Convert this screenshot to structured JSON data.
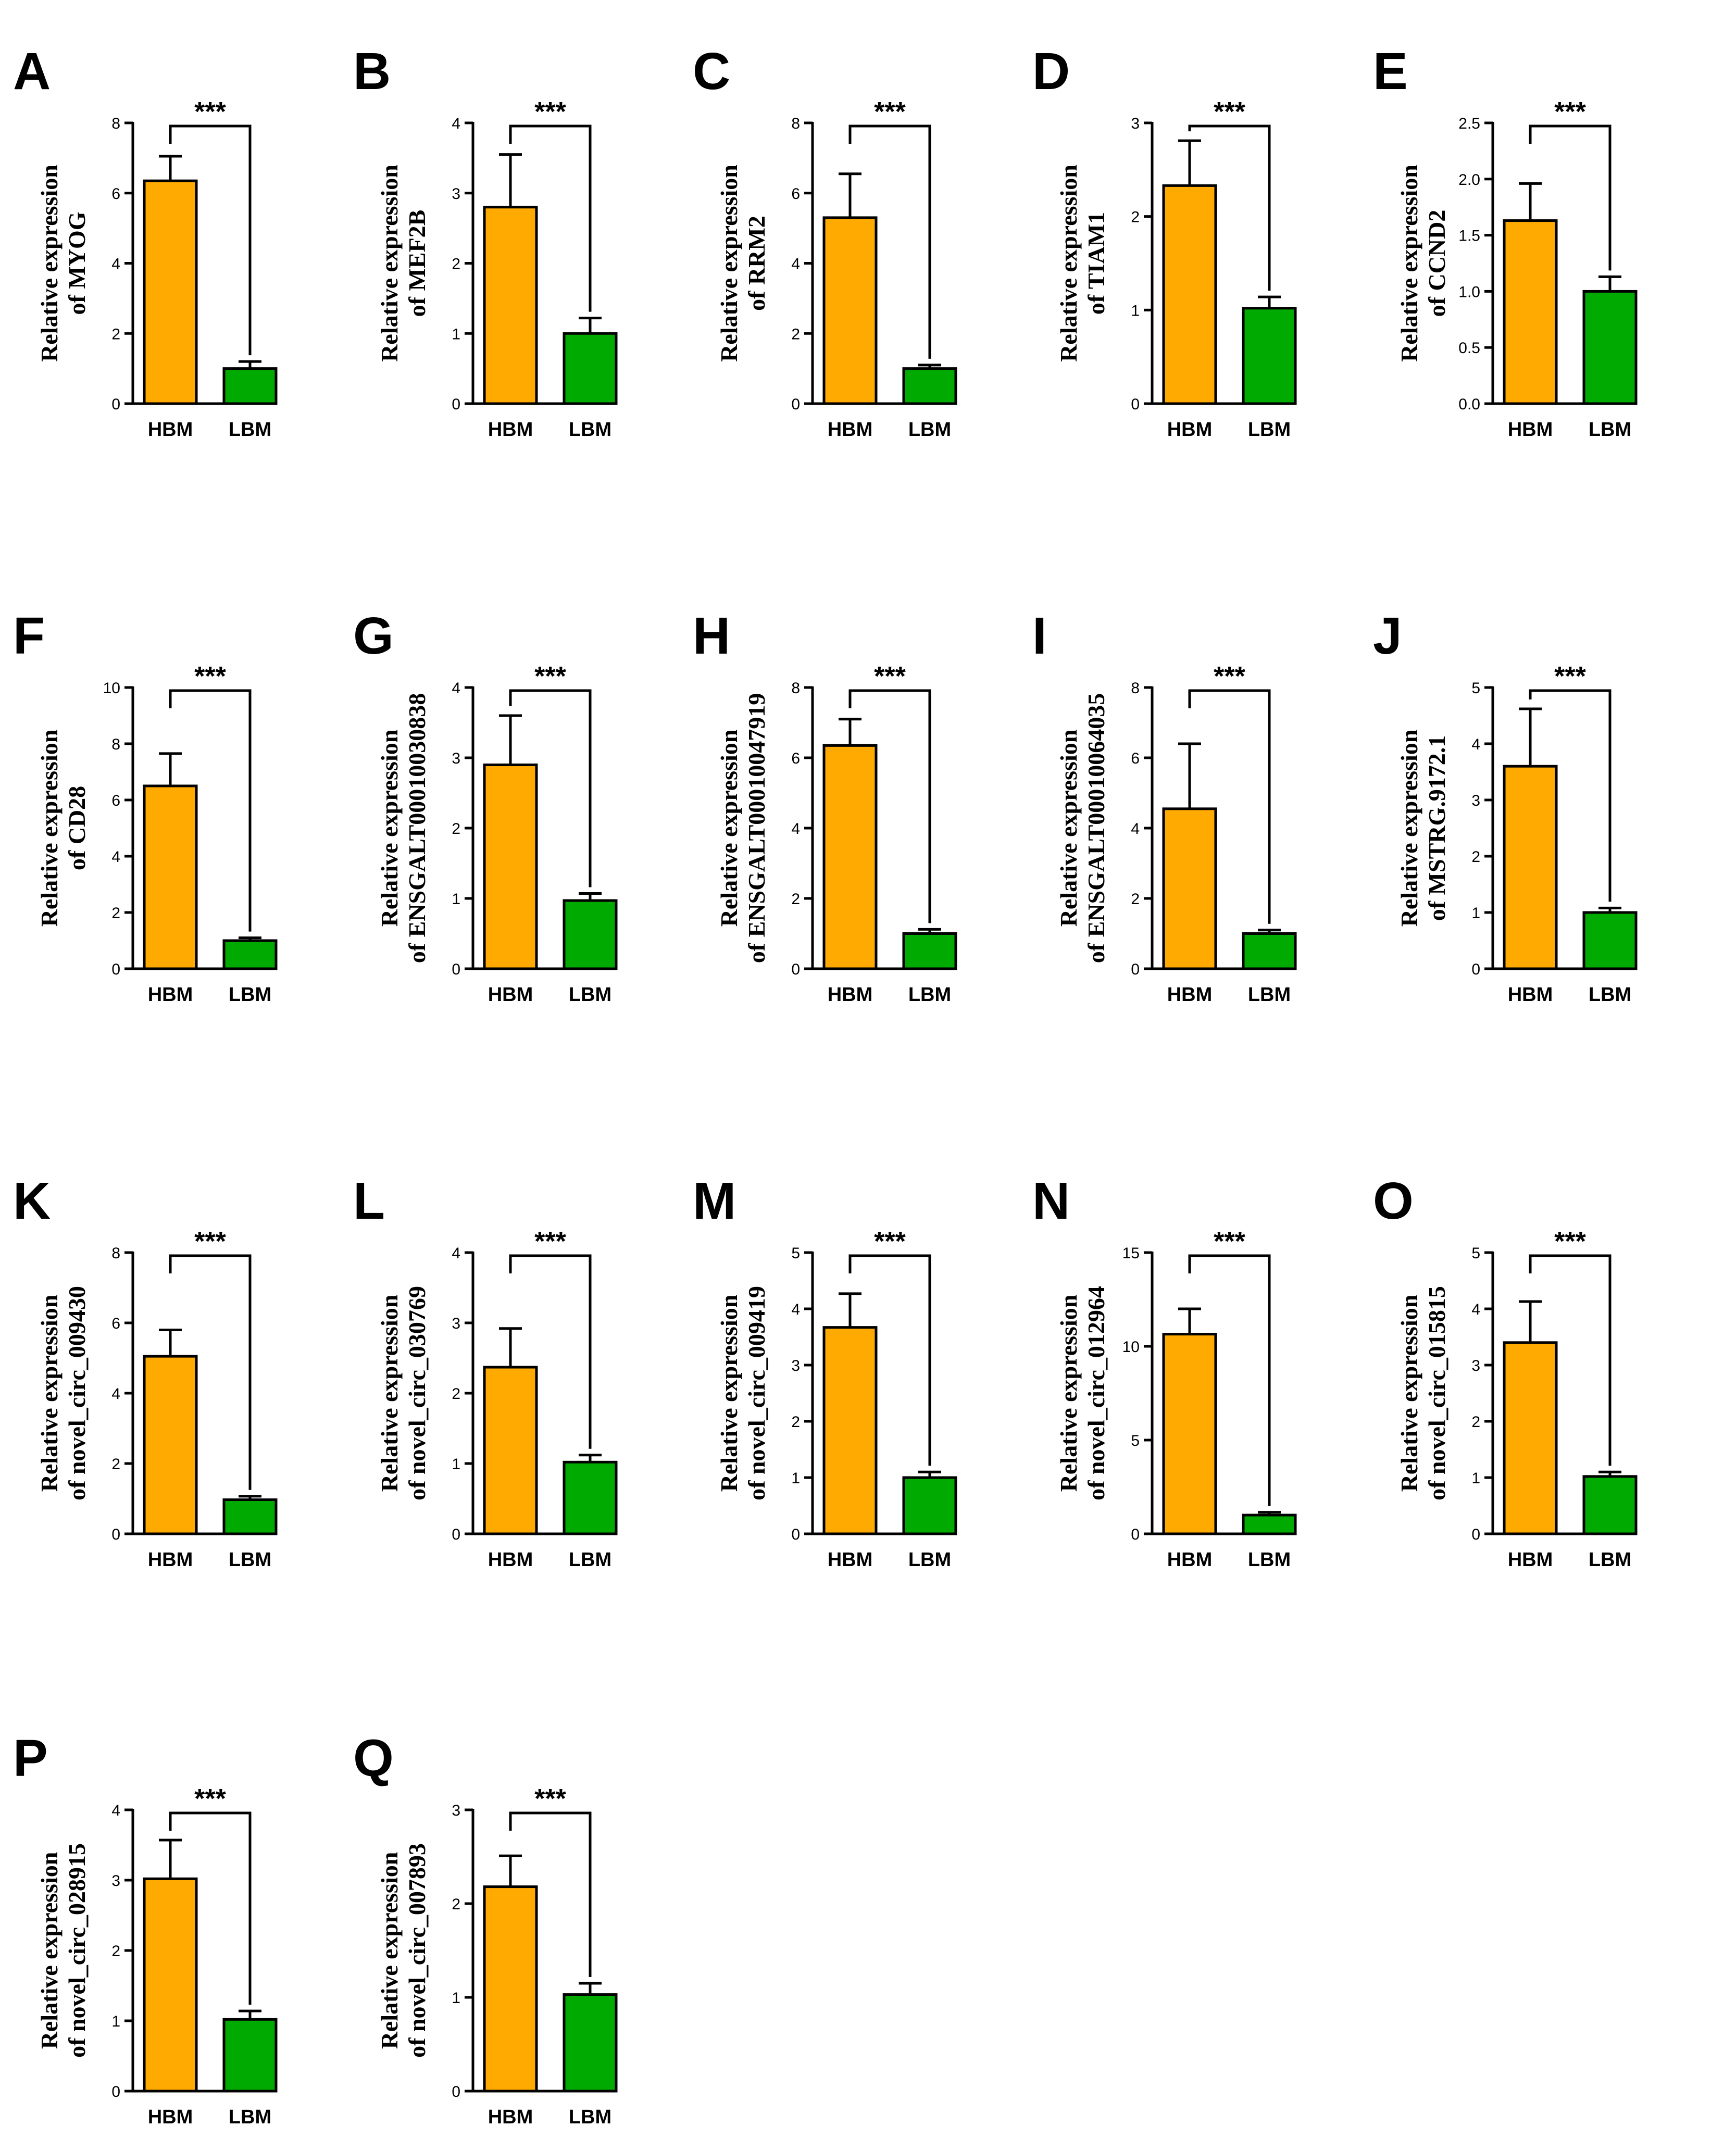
{
  "figure": {
    "colors": {
      "HBM": "#FFAA00",
      "LBM": "#00AA00"
    },
    "categories": [
      "HBM",
      "LBM"
    ],
    "ylabel_line1": "Relative expression"
  },
  "chart_data": [
    {
      "panel": "A",
      "type": "bar",
      "ylabel": "of MYOG",
      "categories": [
        "HBM",
        "LBM"
      ],
      "values": [
        6.35,
        1.0
      ],
      "errors": [
        0.7,
        0.2
      ],
      "ylim": [
        0,
        8
      ],
      "ticks": [
        "0",
        "2",
        "4",
        "6",
        "8"
      ],
      "significance": "***"
    },
    {
      "panel": "B",
      "type": "bar",
      "ylabel": "of MEF2B",
      "categories": [
        "HBM",
        "LBM"
      ],
      "values": [
        2.8,
        1.0
      ],
      "errors": [
        0.75,
        0.22
      ],
      "ylim": [
        0,
        4
      ],
      "ticks": [
        "0",
        "1",
        "2",
        "3",
        "4"
      ],
      "significance": "***"
    },
    {
      "panel": "C",
      "type": "bar",
      "ylabel": "of RRM2",
      "categories": [
        "HBM",
        "LBM"
      ],
      "values": [
        5.3,
        1.0
      ],
      "errors": [
        1.25,
        0.1
      ],
      "ylim": [
        0,
        8
      ],
      "ticks": [
        "0",
        "2",
        "4",
        "6",
        "8"
      ],
      "significance": "***"
    },
    {
      "panel": "D",
      "type": "bar",
      "ylabel": "of TIAM1",
      "categories": [
        "HBM",
        "LBM"
      ],
      "values": [
        2.33,
        1.02
      ],
      "errors": [
        0.48,
        0.12
      ],
      "ylim": [
        0,
        3
      ],
      "ticks": [
        "0",
        "1",
        "2",
        "3"
      ],
      "significance": "***"
    },
    {
      "panel": "E",
      "type": "bar",
      "ylabel": "of CCND2",
      "categories": [
        "HBM",
        "LBM"
      ],
      "values": [
        1.63,
        1.0
      ],
      "errors": [
        0.33,
        0.13
      ],
      "ylim": [
        0,
        2.5
      ],
      "ticks": [
        "0.0",
        "0.5",
        "1.0",
        "1.5",
        "2.0",
        "2.5"
      ],
      "significance": "***"
    },
    {
      "panel": "F",
      "type": "bar",
      "ylabel": "of CD28",
      "categories": [
        "HBM",
        "LBM"
      ],
      "values": [
        6.5,
        1.0
      ],
      "errors": [
        1.15,
        0.1
      ],
      "ylim": [
        0,
        10
      ],
      "ticks": [
        "0",
        "2",
        "4",
        "6",
        "8",
        "10"
      ],
      "significance": "***"
    },
    {
      "panel": "G",
      "type": "bar",
      "ylabel": "of ENSGALT00010030838",
      "categories": [
        "HBM",
        "LBM"
      ],
      "values": [
        2.9,
        0.97
      ],
      "errors": [
        0.7,
        0.1
      ],
      "ylim": [
        0,
        4
      ],
      "ticks": [
        "0",
        "1",
        "2",
        "3",
        "4"
      ],
      "significance": "***"
    },
    {
      "panel": "H",
      "type": "bar",
      "ylabel": "of ENSGALT00010047919",
      "categories": [
        "HBM",
        "LBM"
      ],
      "values": [
        6.35,
        1.0
      ],
      "errors": [
        0.75,
        0.12
      ],
      "ylim": [
        0,
        8
      ],
      "ticks": [
        "0",
        "2",
        "4",
        "6",
        "8"
      ],
      "significance": "***"
    },
    {
      "panel": "I",
      "type": "bar",
      "ylabel": "of ENSGALT00010064035",
      "categories": [
        "HBM",
        "LBM"
      ],
      "values": [
        4.55,
        1.0
      ],
      "errors": [
        1.85,
        0.1
      ],
      "ylim": [
        0,
        8
      ],
      "ticks": [
        "0",
        "2",
        "4",
        "6",
        "8"
      ],
      "significance": "***"
    },
    {
      "panel": "J",
      "type": "bar",
      "ylabel": "of MSTRG.9172.1",
      "categories": [
        "HBM",
        "LBM"
      ],
      "values": [
        3.6,
        1.0
      ],
      "errors": [
        1.02,
        0.08
      ],
      "ylim": [
        0,
        5
      ],
      "ticks": [
        "0",
        "1",
        "2",
        "3",
        "4",
        "5"
      ],
      "significance": "***"
    },
    {
      "panel": "K",
      "type": "bar",
      "ylabel": "of novel_circ_009430",
      "categories": [
        "HBM",
        "LBM"
      ],
      "values": [
        5.05,
        0.97
      ],
      "errors": [
        0.75,
        0.1
      ],
      "ylim": [
        0,
        8
      ],
      "ticks": [
        "0",
        "2",
        "4",
        "6",
        "8"
      ],
      "significance": "***"
    },
    {
      "panel": "L",
      "type": "bar",
      "ylabel": "of novel_circ_030769",
      "categories": [
        "HBM",
        "LBM"
      ],
      "values": [
        2.37,
        1.02
      ],
      "errors": [
        0.55,
        0.1
      ],
      "ylim": [
        0,
        4
      ],
      "ticks": [
        "0",
        "1",
        "2",
        "3",
        "4"
      ],
      "significance": "***"
    },
    {
      "panel": "M",
      "type": "bar",
      "ylabel": "of novel_circ_009419",
      "categories": [
        "HBM",
        "LBM"
      ],
      "values": [
        3.67,
        1.0
      ],
      "errors": [
        0.6,
        0.1
      ],
      "ylim": [
        0,
        5
      ],
      "ticks": [
        "0",
        "1",
        "2",
        "3",
        "4",
        "5"
      ],
      "significance": "***"
    },
    {
      "panel": "N",
      "type": "bar",
      "ylabel": "of novel_circ_012964",
      "categories": [
        "HBM",
        "LBM"
      ],
      "values": [
        10.65,
        1.0
      ],
      "errors": [
        1.35,
        0.15
      ],
      "ylim": [
        0,
        15
      ],
      "ticks": [
        "0",
        "5",
        "10",
        "15"
      ],
      "significance": "***"
    },
    {
      "panel": "O",
      "type": "bar",
      "ylabel": "of novel_circ_015815",
      "categories": [
        "HBM",
        "LBM"
      ],
      "values": [
        3.4,
        1.02
      ],
      "errors": [
        0.73,
        0.08
      ],
      "ylim": [
        0,
        5
      ],
      "ticks": [
        "0",
        "1",
        "2",
        "3",
        "4",
        "5"
      ],
      "significance": "***"
    },
    {
      "panel": "P",
      "type": "bar",
      "ylabel": "of novel_circ_028915",
      "categories": [
        "HBM",
        "LBM"
      ],
      "values": [
        3.02,
        1.02
      ],
      "errors": [
        0.55,
        0.12
      ],
      "ylim": [
        0,
        4
      ],
      "ticks": [
        "0",
        "1",
        "2",
        "3",
        "4"
      ],
      "significance": "***"
    },
    {
      "panel": "Q",
      "type": "bar",
      "ylabel": "of novel_circ_007893",
      "categories": [
        "HBM",
        "LBM"
      ],
      "values": [
        2.18,
        1.03
      ],
      "errors": [
        0.33,
        0.12
      ],
      "ylim": [
        0,
        3
      ],
      "ticks": [
        "0",
        "1",
        "2",
        "3"
      ],
      "significance": "***"
    }
  ]
}
